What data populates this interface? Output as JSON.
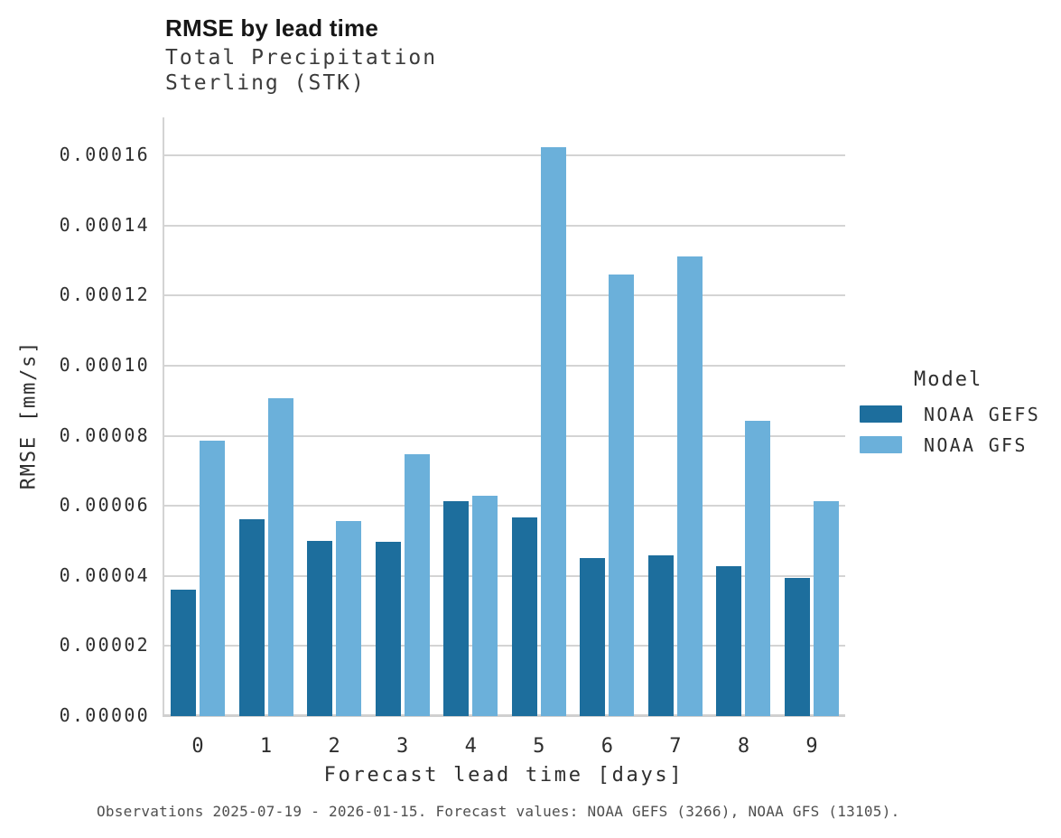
{
  "header": {
    "title": "RMSE by lead time",
    "subtitle_line1": "Total Precipitation",
    "subtitle_line2": "Sterling (STK)"
  },
  "legend": {
    "title": "Model",
    "entries": [
      {
        "label": "NOAA GEFS",
        "color": "#1d6e9d"
      },
      {
        "label": "NOAA GFS",
        "color": "#6bb0da"
      }
    ]
  },
  "caption": "Observations 2025-07-19 - 2026-01-15. Forecast values: NOAA GEFS (3266), NOAA GFS (13105).",
  "colors": {
    "gridline": "#d4d4d4",
    "axis": "#d0d0d0",
    "noaa_gefs": "#1d6e9d",
    "noaa_gfs": "#6bb0da"
  },
  "chart_data": {
    "type": "bar",
    "title": "RMSE by lead time",
    "subtitle": [
      "Total Precipitation",
      "Sterling (STK)"
    ],
    "xlabel": "Forecast lead time [days]",
    "ylabel": "RMSE [mm/s]",
    "categories": [
      "0",
      "1",
      "2",
      "3",
      "4",
      "5",
      "6",
      "7",
      "8",
      "9"
    ],
    "series": [
      {
        "name": "NOAA GEFS",
        "color": "#1d6e9d",
        "values": [
          3.62e-05,
          5.63e-05,
          5e-05,
          4.98e-05,
          6.12e-05,
          5.68e-05,
          4.5e-05,
          4.59e-05,
          4.28e-05,
          3.93e-05
        ]
      },
      {
        "name": "NOAA GFS",
        "color": "#6bb0da",
        "values": [
          7.85e-05,
          9.08e-05,
          5.57e-05,
          7.48e-05,
          6.28e-05,
          0.0001623,
          0.0001259,
          0.0001312,
          8.42e-05,
          6.12e-05
        ]
      }
    ],
    "ylim": [
      0,
      0.00016
    ],
    "yticks": [
      0.0,
      2e-05,
      4e-05,
      6e-05,
      8e-05,
      0.0001,
      0.00012,
      0.00014,
      0.00016
    ],
    "ytick_labels": [
      "0.00000",
      "0.00002",
      "0.00004",
      "0.00006",
      "0.00008",
      "0.00010",
      "0.00012",
      "0.00014",
      "0.00016"
    ],
    "grid": "horizontal",
    "legend_position": "right",
    "legend_title": "Model"
  }
}
